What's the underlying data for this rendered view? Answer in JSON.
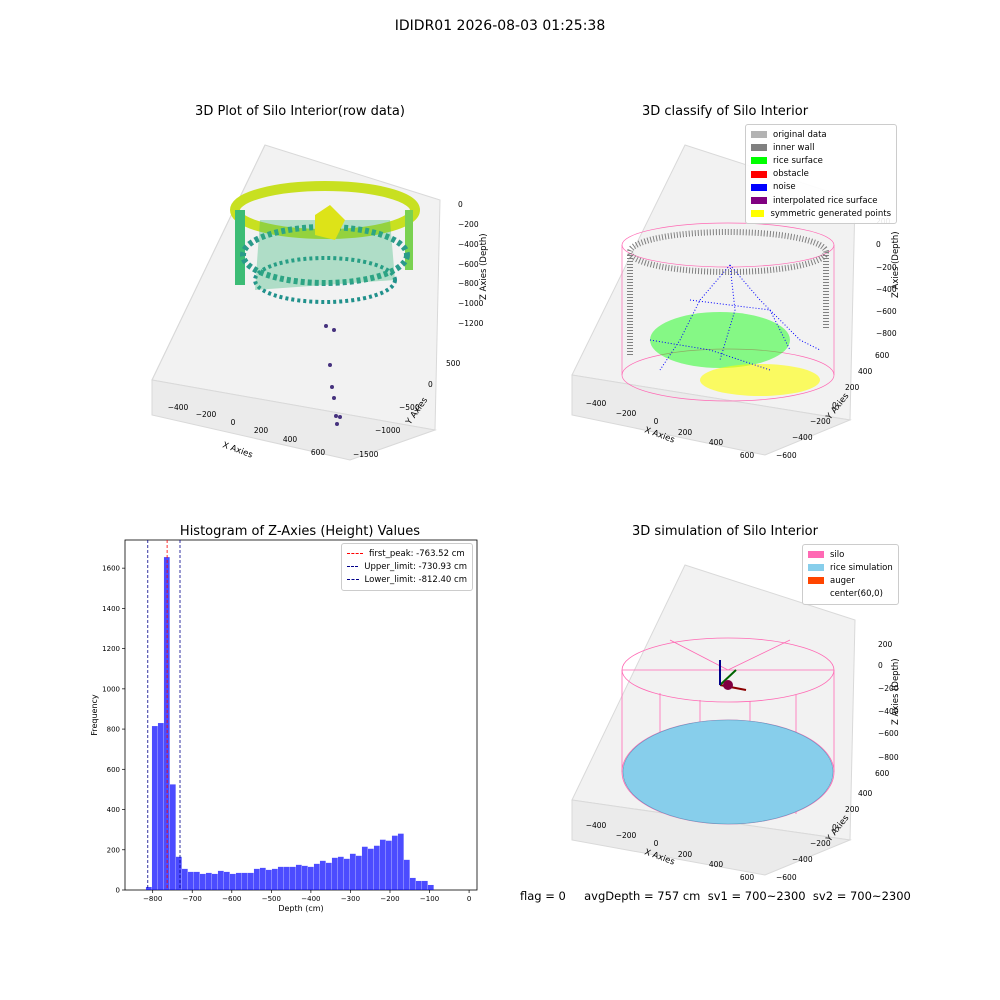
{
  "figure": {
    "title": "IDIDR01 2026-08-03 01:25:38",
    "footer": "flag = 0     avgDepth = 757 cm  sv1 = 700~2300  sv2 = 700~2300"
  },
  "chart_data": [
    {
      "type": "scatter",
      "projection": "3d",
      "title": "3D Plot of Silo Interior(row data)",
      "xlabel": "X Axies",
      "ylabel": "Y Axies",
      "zlabel": "Z Axies (Depth)",
      "x_ticks": [
        "−400",
        "−200",
        "0",
        "200",
        "400",
        "600"
      ],
      "y_ticks": [
        "−1500",
        "−1000",
        "−500",
        "0",
        "500"
      ],
      "z_ticks": [
        "0",
        "−200",
        "−400",
        "−600",
        "−800",
        "−1000",
        "−1200"
      ],
      "xlim": [
        -550,
        700
      ],
      "ylim": [
        -1550,
        700
      ],
      "zlim": [
        -1350,
        100
      ],
      "colormap": "viridis"
    },
    {
      "type": "scatter",
      "projection": "3d",
      "title": "3D classify of Silo Interior",
      "xlabel": "X Axies",
      "ylabel": "Y Axies",
      "zlabel": "Z Axies (Depth)",
      "x_ticks": [
        "−400",
        "−200",
        "0",
        "200",
        "400",
        "600"
      ],
      "y_ticks": [
        "−600",
        "−400",
        "−200",
        "0",
        "200",
        "400",
        "600"
      ],
      "z_ticks": [
        "200",
        "0",
        "−200",
        "−400",
        "−600",
        "−800"
      ],
      "legend": [
        {
          "label": "original data",
          "color": "#b3b3b3"
        },
        {
          "label": "inner wall",
          "color": "#808080"
        },
        {
          "label": "rice surface",
          "color": "#00ff00"
        },
        {
          "label": "obstacle",
          "color": "#ff0000"
        },
        {
          "label": "noise",
          "color": "#0000ff"
        },
        {
          "label": "interpolated rice surface",
          "color": "#800080"
        },
        {
          "label": "symmetric generated points",
          "color": "#ffff00"
        }
      ],
      "silo_wireframe_color": "#ff69b4"
    },
    {
      "type": "bar",
      "title": "Histogram of Z-Axies (Height) Values",
      "xlabel": "Depth (cm)",
      "ylabel": "Frequency",
      "xlim": [
        -870,
        20
      ],
      "ylim": [
        0,
        1740
      ],
      "x_ticks": [
        -800,
        -700,
        -600,
        -500,
        -400,
        -300,
        -200,
        -100,
        0
      ],
      "y_ticks": [
        0,
        200,
        400,
        600,
        800,
        1000,
        1200,
        1400,
        1600
      ],
      "bar_color": "#0000ff",
      "bin_width": 15.17,
      "bins": [
        {
          "x0": -817,
          "count": 15
        },
        {
          "x0": -801.83,
          "count": 815
        },
        {
          "x0": -786.66,
          "count": 830
        },
        {
          "x0": -771.49,
          "count": 1655
        },
        {
          "x0": -756.32,
          "count": 525
        },
        {
          "x0": -741.15,
          "count": 165
        },
        {
          "x0": -725.98,
          "count": 105
        },
        {
          "x0": -710.81,
          "count": 90
        },
        {
          "x0": -695.64,
          "count": 90
        },
        {
          "x0": -680.47,
          "count": 80
        },
        {
          "x0": -665.3,
          "count": 85
        },
        {
          "x0": -650.13,
          "count": 80
        },
        {
          "x0": -634.96,
          "count": 95
        },
        {
          "x0": -619.79,
          "count": 90
        },
        {
          "x0": -604.62,
          "count": 80
        },
        {
          "x0": -589.45,
          "count": 85
        },
        {
          "x0": -574.28,
          "count": 85
        },
        {
          "x0": -559.11,
          "count": 85
        },
        {
          "x0": -543.94,
          "count": 105
        },
        {
          "x0": -528.77,
          "count": 110
        },
        {
          "x0": -513.6,
          "count": 100
        },
        {
          "x0": -498.43,
          "count": 105
        },
        {
          "x0": -483.26,
          "count": 115
        },
        {
          "x0": -468.09,
          "count": 115
        },
        {
          "x0": -452.92,
          "count": 115
        },
        {
          "x0": -437.75,
          "count": 125
        },
        {
          "x0": -422.58,
          "count": 120
        },
        {
          "x0": -407.41,
          "count": 115
        },
        {
          "x0": -392.24,
          "count": 130
        },
        {
          "x0": -377.07,
          "count": 145
        },
        {
          "x0": -361.9,
          "count": 135
        },
        {
          "x0": -346.73,
          "count": 160
        },
        {
          "x0": -331.56,
          "count": 165
        },
        {
          "x0": -316.39,
          "count": 155
        },
        {
          "x0": -301.22,
          "count": 180
        },
        {
          "x0": -286.05,
          "count": 170
        },
        {
          "x0": -270.88,
          "count": 215
        },
        {
          "x0": -255.71,
          "count": 205
        },
        {
          "x0": -240.54,
          "count": 220
        },
        {
          "x0": -225.37,
          "count": 250
        },
        {
          "x0": -210.2,
          "count": 245
        },
        {
          "x0": -195.03,
          "count": 270
        },
        {
          "x0": -179.86,
          "count": 280
        },
        {
          "x0": -164.69,
          "count": 150
        },
        {
          "x0": -149.52,
          "count": 60
        },
        {
          "x0": -134.35,
          "count": 45
        },
        {
          "x0": -119.18,
          "count": 45
        },
        {
          "x0": -104.01,
          "count": 25
        }
      ],
      "vlines": [
        {
          "label": "first_peak: -763.52 cm",
          "x": -763.52,
          "color": "#ff0000"
        },
        {
          "label": "Upper_limit: -730.93 cm",
          "x": -730.93,
          "color": "#00008b"
        },
        {
          "label": "Lower_limit: -812.40 cm",
          "x": -812.4,
          "color": "#00008b"
        }
      ],
      "legend_position": "upper right"
    },
    {
      "type": "scatter",
      "projection": "3d",
      "title": "3D simulation of Silo Interior",
      "xlabel": "X Axies",
      "ylabel": "Y Axies",
      "zlabel": "Z Axies (Depth)",
      "x_ticks": [
        "−400",
        "−200",
        "0",
        "200",
        "400",
        "600"
      ],
      "y_ticks": [
        "−600",
        "−400",
        "−200",
        "0",
        "200",
        "400",
        "600"
      ],
      "z_ticks": [
        "200",
        "0",
        "−200",
        "−400",
        "−600",
        "−800"
      ],
      "legend": [
        {
          "label": "silo",
          "color": "#ff69b4"
        },
        {
          "label": "rice simulation",
          "color": "#87ceeb"
        },
        {
          "label": "auger",
          "color": "#ff4500"
        },
        {
          "label": "center(60,0)",
          "color": ""
        }
      ]
    }
  ]
}
